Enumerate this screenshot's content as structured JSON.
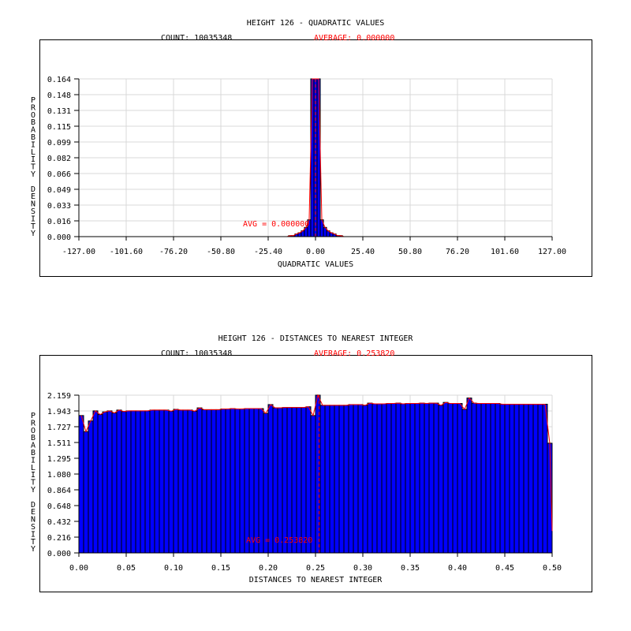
{
  "chart_data": [
    {
      "type": "bar",
      "title": "HEIGHT 126 - QUADRATIC VALUES",
      "count_label": "COUNT: 10035348",
      "average_label": "AVERAGE: 0.000000",
      "avg_annotation": "AVG = 0.000000",
      "average": 0.0,
      "xlabel": "QUADRATIC VALUES",
      "ylabel": "PROBABILITY DENSITY",
      "xlim": [
        -127,
        127
      ],
      "ylim": [
        0,
        0.164
      ],
      "xticks": [
        "-127.00",
        "-101.60",
        "-76.20",
        "-50.80",
        "-25.40",
        "0.00",
        "25.40",
        "50.80",
        "76.20",
        "101.60",
        "127.00"
      ],
      "yticks": [
        "0.000",
        "0.016",
        "0.033",
        "0.049",
        "0.066",
        "0.082",
        "0.099",
        "0.115",
        "0.131",
        "0.148",
        "0.164"
      ],
      "grid": true,
      "bin_width": 1.7,
      "bin_centers": [
        -13.6,
        -11.9,
        -10.2,
        -8.5,
        -6.8,
        -5.1,
        -3.4,
        -1.7,
        0,
        1.7,
        3.4,
        5.1,
        6.8,
        8.5,
        10.2,
        11.9,
        13.6
      ],
      "values": [
        0.001,
        0.001,
        0.0027,
        0.004,
        0.006,
        0.0096,
        0.0175,
        0.2,
        0.3,
        0.2,
        0.0175,
        0.0096,
        0.006,
        0.004,
        0.0027,
        0.001,
        0.001
      ],
      "colors": {
        "bar": "#0000ff",
        "bar_edge": "#000000",
        "curve": "#ff0000",
        "average": "#ff0000",
        "grid": "#d9d9d9"
      }
    },
    {
      "type": "bar",
      "title": "HEIGHT 126 - DISTANCES TO NEAREST INTEGER",
      "count_label": "COUNT: 10035348",
      "average_label": "AVERAGE: 0.253820",
      "avg_annotation": "AVG = 0.253820",
      "average": 0.25382,
      "xlabel": "DISTANCES TO NEAREST INTEGER",
      "ylabel": "PROBABILITY DENSITY",
      "xlim": [
        0,
        0.5
      ],
      "ylim": [
        0,
        2.159
      ],
      "xticks": [
        "0.00",
        "0.05",
        "0.10",
        "0.15",
        "0.20",
        "0.25",
        "0.30",
        "0.35",
        "0.40",
        "0.45",
        "0.50"
      ],
      "yticks": [
        "0.000",
        "0.216",
        "0.432",
        "0.648",
        "0.864",
        "1.080",
        "1.295",
        "1.511",
        "1.727",
        "1.943",
        "2.159"
      ],
      "grid": true,
      "bin_width": 0.005,
      "values": [
        1.88,
        1.66,
        1.806,
        1.944,
        1.894,
        1.93,
        1.944,
        1.915,
        1.955,
        1.935,
        1.944,
        1.944,
        1.944,
        1.944,
        1.944,
        1.955,
        1.955,
        1.955,
        1.955,
        1.94,
        1.965,
        1.955,
        1.955,
        1.955,
        1.94,
        1.985,
        1.96,
        1.96,
        1.96,
        1.96,
        1.97,
        1.97,
        1.975,
        1.97,
        1.97,
        1.975,
        1.975,
        1.975,
        1.975,
        1.91,
        2.03,
        1.985,
        1.985,
        1.99,
        1.99,
        1.99,
        1.99,
        1.99,
        2.0,
        1.88,
        2.159,
        2.02,
        2.02,
        2.02,
        2.02,
        2.02,
        2.02,
        2.03,
        2.03,
        2.03,
        2.02,
        2.05,
        2.04,
        2.04,
        2.04,
        2.045,
        2.045,
        2.05,
        2.04,
        2.045,
        2.045,
        2.045,
        2.05,
        2.045,
        2.05,
        2.05,
        2.02,
        2.06,
        2.045,
        2.045,
        2.045,
        1.965,
        2.12,
        2.05,
        2.045,
        2.045,
        2.045,
        2.045,
        2.045,
        2.035,
        2.035,
        2.035,
        2.035,
        2.035,
        2.035,
        2.035,
        2.035,
        2.035,
        2.035,
        1.5
      ],
      "colors": {
        "bar": "#0000ff",
        "bar_edge": "#000000",
        "curve": "#ff0000",
        "average": "#ff0000",
        "grid": "#d9d9d9"
      }
    }
  ]
}
